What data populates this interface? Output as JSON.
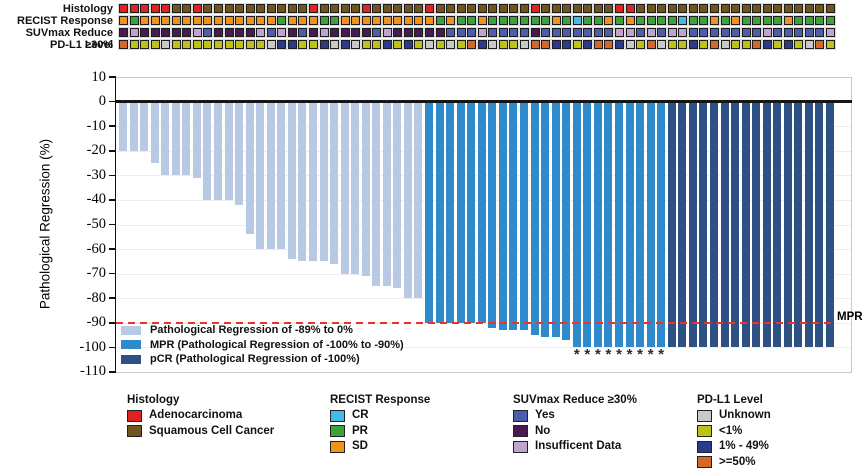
{
  "tracks": {
    "rows": [
      {
        "label": "Histology",
        "key": "histology",
        "values": [
          "R",
          "R",
          "R",
          "R",
          "R",
          "B",
          "B",
          "R",
          "B",
          "B",
          "B",
          "B",
          "B",
          "B",
          "B",
          "B",
          "B",
          "B",
          "R",
          "B",
          "B",
          "B",
          "B",
          "R",
          "B",
          "B",
          "B",
          "B",
          "B",
          "R",
          "B",
          "B",
          "B",
          "B",
          "B",
          "B",
          "B",
          "B",
          "B",
          "R",
          "B",
          "B",
          "B",
          "B",
          "B",
          "B",
          "B",
          "R",
          "R",
          "B",
          "B",
          "B",
          "B",
          "B",
          "B",
          "B",
          "B",
          "B",
          "B",
          "B",
          "B",
          "B",
          "B",
          "B",
          "B",
          "B",
          "B",
          "B"
        ]
      },
      {
        "label": "RECIST Response",
        "key": "recist",
        "values": [
          "SD",
          "PR",
          "SD",
          "SD",
          "SD",
          "SD",
          "SD",
          "SD",
          "SD",
          "SD",
          "SD",
          "SD",
          "SD",
          "SD",
          "SD",
          "PR",
          "SD",
          "SD",
          "SD",
          "PR",
          "PR",
          "SD",
          "SD",
          "SD",
          "SD",
          "SD",
          "SD",
          "SD",
          "SD",
          "SD",
          "PR",
          "SD",
          "PR",
          "PR",
          "SD",
          "PR",
          "PR",
          "PR",
          "PR",
          "PR",
          "PR",
          "SD",
          "PR",
          "CR",
          "PR",
          "PR",
          "SD",
          "PR",
          "SD",
          "PR",
          "PR",
          "PR",
          "PR",
          "CR",
          "PR",
          "PR",
          "SD",
          "PR",
          "SD",
          "PR",
          "PR",
          "PR",
          "PR",
          "SD",
          "PR",
          "PR",
          "PR",
          "PR"
        ]
      },
      {
        "label": "SUVmax Reduce ≥30%",
        "key": "suvmax",
        "values": [
          "No",
          "Ins",
          "No",
          "No",
          "No",
          "No",
          "No",
          "Ins",
          "Yes",
          "No",
          "No",
          "No",
          "No",
          "Ins",
          "Yes",
          "Ins",
          "No",
          "Yes",
          "No",
          "Ins",
          "No",
          "No",
          "No",
          "No",
          "Yes",
          "Ins",
          "No",
          "No",
          "No",
          "No",
          "No",
          "Yes",
          "Yes",
          "Yes",
          "Ins",
          "Yes",
          "Yes",
          "Yes",
          "Yes",
          "No",
          "Yes",
          "Yes",
          "Yes",
          "Yes",
          "Yes",
          "Yes",
          "Yes",
          "Ins",
          "Ins",
          "Yes",
          "Ins",
          "Yes",
          "Ins",
          "Ins",
          "Yes",
          "Yes",
          "Yes",
          "Yes",
          "Yes",
          "Yes",
          "Yes",
          "Ins",
          "Yes",
          "Yes",
          "Yes",
          "Yes",
          "Yes",
          "Ins"
        ]
      },
      {
        "label": "PD-L1 Level",
        "key": "pdl1",
        "values": [
          "ge50",
          "lt1",
          "lt1",
          "lt1",
          "unk",
          "lt1",
          "lt1",
          "lt1",
          "lt1",
          "lt1",
          "lt1",
          "lt1",
          "lt1",
          "lt1",
          "unk",
          "1to49",
          "1to49",
          "lt1",
          "lt1",
          "1to49",
          "unk",
          "1to49",
          "unk",
          "lt1",
          "lt1",
          "1to49",
          "lt1",
          "1to49",
          "lt1",
          "unk",
          "lt1",
          "unk",
          "lt1",
          "ge50",
          "1to49",
          "unk",
          "lt1",
          "lt1",
          "unk",
          "ge50",
          "ge50",
          "1to49",
          "1to49",
          "lt1",
          "1to49",
          "ge50",
          "ge50",
          "1to49",
          "unk",
          "lt1",
          "ge50",
          "unk",
          "lt1",
          "lt1",
          "1to49",
          "lt1",
          "ge50",
          "unk",
          "lt1",
          "lt1",
          "ge50",
          "1to49",
          "lt1",
          "1to49",
          "lt1",
          "unk",
          "ge50",
          "lt1"
        ]
      }
    ],
    "palette": {
      "histology": {
        "R": "#e02222",
        "B": "#72551c"
      },
      "recist": {
        "CR": "#41bbe8",
        "PR": "#3aa33a",
        "SD": "#f0921c"
      },
      "suvmax": {
        "Yes": "#4d5cab",
        "No": "#471a52",
        "Ins": "#bfa3d0"
      },
      "pdl1": {
        "unk": "#c9c9c9",
        "lt1": "#bcc216",
        "1to49": "#2c3a8c",
        "ge50": "#d4682b"
      }
    }
  },
  "chart_data": {
    "type": "bar",
    "title": "",
    "xlabel": "",
    "ylabel": "Pathological Regression (%)",
    "ylim": [
      -110,
      10
    ],
    "yticks": [
      10,
      0,
      -10,
      -20,
      -30,
      -40,
      -50,
      -60,
      -70,
      -80,
      -90,
      -100,
      -110
    ],
    "n_patients": 68,
    "grid": "light horizontal every 10",
    "values": [
      -20,
      -20,
      -20,
      -25,
      -30,
      -30,
      -30,
      -31,
      -40,
      -40,
      -40,
      -42,
      -54,
      -60,
      -60,
      -60,
      -64,
      -65,
      -65,
      -65,
      -66,
      -70,
      -70,
      -71,
      -75,
      -75,
      -76,
      -80,
      -80,
      -90,
      -90,
      -90,
      -90,
      -90,
      -90,
      -92,
      -93,
      -93,
      -93,
      -95,
      -96,
      -96,
      -97,
      -100,
      -100,
      -100,
      -100,
      -100,
      -100,
      -100,
      -100,
      -100,
      -100,
      -100,
      -100,
      -100,
      -100,
      -100,
      -100,
      -100,
      -100,
      -100,
      -100,
      -100,
      -100,
      -100,
      -100,
      -100
    ],
    "group_ranges": {
      "regression": [
        1,
        29
      ],
      "mpr": [
        30,
        52
      ],
      "pcr": [
        53,
        68
      ]
    },
    "asterisk_bars": [
      44,
      45,
      46,
      47,
      48,
      49,
      50,
      51,
      52
    ],
    "colors": {
      "regression": "#b8c9e4",
      "mpr": "#2f8acb",
      "pcr": "#2c5182"
    },
    "mpr_line": {
      "value": -90,
      "label": "MPR",
      "color": "#e8352b",
      "style": "dashed"
    },
    "legend": [
      {
        "key": "regression",
        "label": "Pathological Regression of -89% to 0%"
      },
      {
        "key": "mpr",
        "label": "MPR (Pathological Regression of -100% to -90%)"
      },
      {
        "key": "pcr",
        "label": "pCR (Pathological Regression of -100%)"
      }
    ],
    "legend_position": "inside bottom-left"
  },
  "legend_groups": [
    {
      "title": "Histology",
      "items": [
        {
          "label": "Adenocarcinoma",
          "color": "#e02222"
        },
        {
          "label": "Squamous Cell Cancer",
          "color": "#72551c"
        }
      ]
    },
    {
      "title": "RECIST Response",
      "items": [
        {
          "label": "CR",
          "color": "#41bbe8"
        },
        {
          "label": "PR",
          "color": "#3aa33a"
        },
        {
          "label": "SD",
          "color": "#f0921c"
        }
      ]
    },
    {
      "title": "SUVmax Reduce ≥30%",
      "items": [
        {
          "label": "Yes",
          "color": "#4d5cab"
        },
        {
          "label": "No",
          "color": "#471a52"
        },
        {
          "label": "Insufficent Data",
          "color": "#bfa3d0"
        }
      ]
    },
    {
      "title": "PD-L1 Level",
      "items": [
        {
          "label": "Unknown",
          "color": "#c9c9c9"
        },
        {
          "label": "<1%",
          "color": "#bcc216"
        },
        {
          "label": "1% - 49%",
          "color": "#2c3a8c"
        },
        {
          "label": ">=50%",
          "color": "#d4682b"
        }
      ]
    }
  ]
}
